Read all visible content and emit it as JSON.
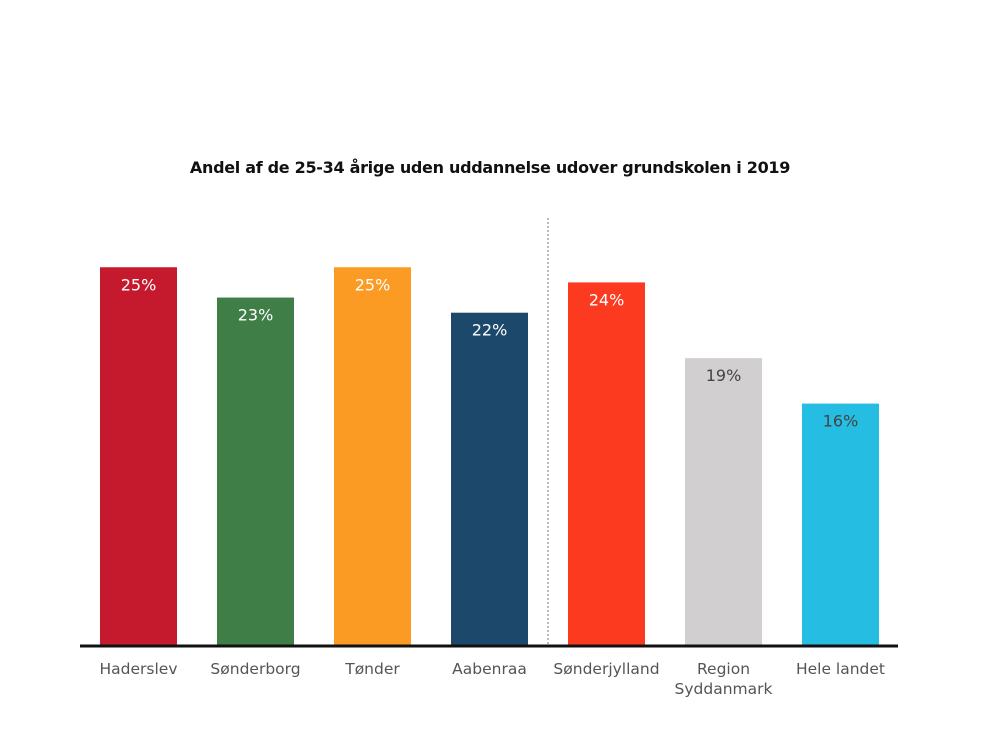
{
  "chart_data": {
    "type": "bar",
    "title": "Andel af de 25-34 årige uden uddannelse udover grundskolen i 2019",
    "xlabel": "",
    "ylabel": "",
    "ylim": [
      0,
      25
    ],
    "grid": false,
    "legend": "none",
    "unit": "%",
    "categories": [
      [
        "Haderslev"
      ],
      [
        "Sønderborg"
      ],
      [
        "Tønder"
      ],
      [
        "Aabenraa"
      ],
      [
        "Sønderjylland"
      ],
      [
        "Region",
        "Syddanmark"
      ],
      [
        "Hele landet"
      ]
    ],
    "values": [
      25,
      23,
      25,
      22,
      24,
      19,
      16
    ],
    "data_labels": [
      "25%",
      "23%",
      "25%",
      "22%",
      "24%",
      "19%",
      "16%"
    ],
    "colors": [
      "#c51a2d",
      "#3f7e47",
      "#fc9b24",
      "#1c496b",
      "#fc3a20",
      "#d1cfd0",
      "#25bde2"
    ],
    "label_colors": [
      "#ffffff",
      "#ffffff",
      "#ffffff",
      "#ffffff",
      "#ffffff",
      "#444444",
      "#444444"
    ],
    "separator_after_index": 3
  }
}
